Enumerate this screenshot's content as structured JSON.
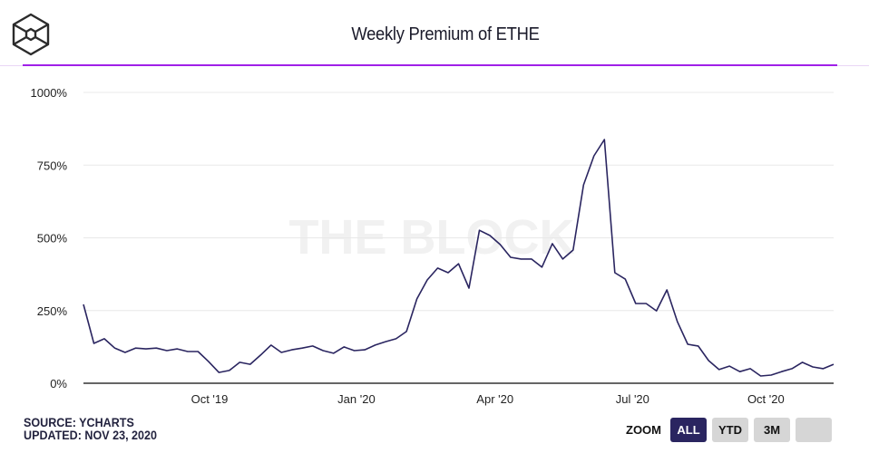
{
  "header": {
    "title": "Weekly Premium of ETHE",
    "logo": "the-block-hexagon-logo"
  },
  "footer": {
    "source": "SOURCE: YCHARTS",
    "updated": "UPDATED: NOV 23, 2020"
  },
  "zoom": {
    "label": "ZOOM",
    "buttons": [
      {
        "label": "ALL",
        "active": true
      },
      {
        "label": "YTD",
        "active": false
      },
      {
        "label": "3M",
        "active": false
      },
      {
        "label": "",
        "active": false
      }
    ]
  },
  "colors": {
    "line": "#2a2560",
    "accent": "#a020e8",
    "grid": "#e8e8e8",
    "axis": "#333333",
    "watermark": "#f1f1f1"
  },
  "chart_data": {
    "type": "line",
    "title": "Weekly Premium of ETHE",
    "watermark": "THE BLOCK",
    "xlabel": "",
    "ylabel": "",
    "ylim": [
      0,
      1000
    ],
    "yticks": [
      0,
      250,
      500,
      750,
      1000
    ],
    "ytick_labels": [
      "0%",
      "250%",
      "500%",
      "750%",
      "1000%"
    ],
    "xticks": [
      {
        "label": "Oct '19",
        "index": 12.1
      },
      {
        "label": "Jan '20",
        "index": 26.2
      },
      {
        "label": "Apr '20",
        "index": 39.5
      },
      {
        "label": "Jul '20",
        "index": 52.7
      },
      {
        "label": "Oct '20",
        "index": 65.5
      }
    ],
    "grid": true,
    "legend": "none",
    "series": [
      {
        "name": "Weekly Premium of ETHE (%)",
        "values": [
          271,
          137,
          153,
          121,
          106,
          121,
          118,
          121,
          112,
          118,
          109,
          109,
          75,
          37,
          44,
          72,
          65,
          97,
          131,
          106,
          115,
          121,
          128,
          112,
          103,
          125,
          112,
          115,
          131,
          143,
          153,
          178,
          290,
          355,
          396,
          380,
          411,
          327,
          526,
          508,
          477,
          433,
          427,
          427,
          399,
          480,
          427,
          458,
          682,
          782,
          838,
          380,
          358,
          274,
          274,
          249,
          321,
          212,
          134,
          128,
          78,
          47,
          59,
          40,
          50,
          25,
          28,
          40,
          50,
          72,
          56,
          50,
          65
        ]
      }
    ]
  }
}
